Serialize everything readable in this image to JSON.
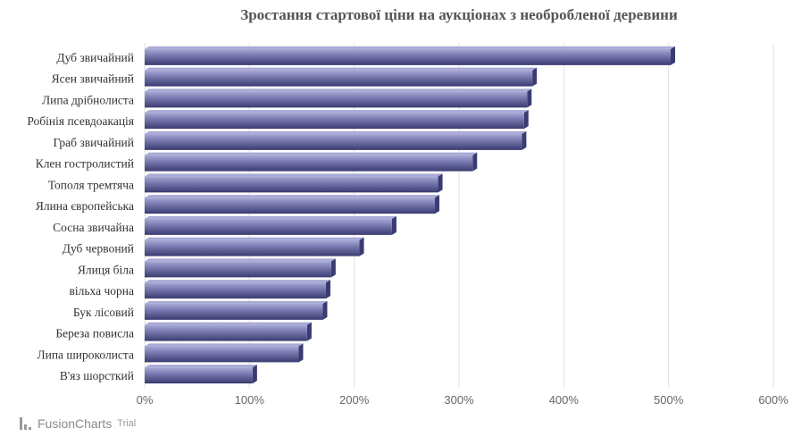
{
  "chart_data": {
    "type": "bar",
    "orientation": "horizontal",
    "title": "Зростання стартової ціни на аукціонах з необробленої деревини",
    "categories": [
      "Дуб звичайний",
      "Ясен звичайний",
      "Липа дрібнолиста",
      "Робінія псевдоакація",
      "Граб звичайний",
      "Клен гостролистий",
      "Тополя тремтяча",
      "Ялина європейська",
      "Сосна звичайна",
      "Дуб червоний",
      "Ялиця біла",
      "вільха чорна",
      "Бук лісовий",
      "Береза повисла",
      "Липа широколиста",
      "В'яз шорсткий"
    ],
    "values": [
      502,
      370,
      365,
      362,
      360,
      313,
      280,
      277,
      236,
      205,
      178,
      173,
      170,
      155,
      147,
      103
    ],
    "xlim": [
      0,
      600
    ],
    "ticks": [
      0,
      100,
      200,
      300,
      400,
      500,
      600
    ],
    "tick_suffix": "%",
    "grid": true,
    "bar_color": "#7e7fb5",
    "bar_dark": "#3a3b70",
    "bar_light": "#a9aad6"
  },
  "watermark": {
    "brand": "FusionCharts",
    "suffix": "Trial"
  }
}
